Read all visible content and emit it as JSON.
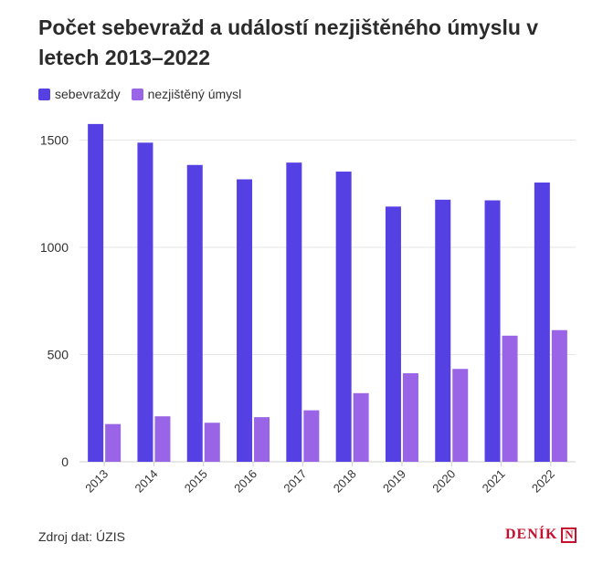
{
  "title": "Počet sebevražd a událostí nezjištěného úmyslu v letech 2013–2022",
  "legend": [
    {
      "label": "sebevraždy",
      "color": "#5540e4"
    },
    {
      "label": "nezjištěný úmysl",
      "color": "#9a64e6"
    }
  ],
  "chart_data": {
    "type": "bar",
    "categories": [
      "2013",
      "2014",
      "2015",
      "2016",
      "2017",
      "2018",
      "2019",
      "2020",
      "2021",
      "2022"
    ],
    "series": [
      {
        "name": "sebevraždy",
        "color": "#5540e4",
        "values": [
          1575,
          1488,
          1384,
          1317,
          1395,
          1353,
          1190,
          1222,
          1219,
          1302
        ]
      },
      {
        "name": "nezjištěný úmysl",
        "color": "#9a64e6",
        "values": [
          176,
          212,
          182,
          208,
          240,
          320,
          413,
          433,
          588,
          614
        ]
      }
    ],
    "yticks": [
      0,
      500,
      1000,
      1500
    ],
    "ylim": [
      0,
      1600
    ],
    "grid": true,
    "legend_position": "top-left"
  },
  "source": "Zdroj dat: ÚZIS",
  "logo": {
    "text": "DENÍK",
    "mark": "N"
  }
}
